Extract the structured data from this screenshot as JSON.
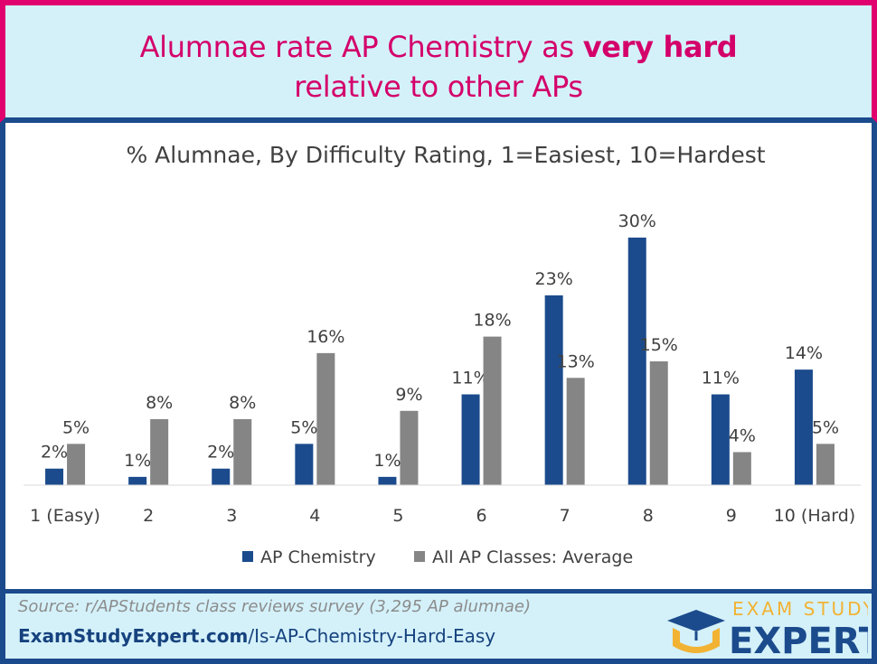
{
  "header": {
    "title_line1_pre": "Alumnae rate AP Chemistry as ",
    "title_line1_bold": "very hard",
    "title_line2": "relative to other APs"
  },
  "footer": {
    "source": "Source: r/APStudents class reviews survey (3,295 AP alumnae)",
    "url_bold": "ExamStudyExpert.com",
    "url_rest": "/Is-AP-Chemistry-Hard-Easy",
    "logo_top": "EXAM STUDY",
    "logo_bottom": "EXPERT"
  },
  "colors": {
    "title": "#d4006a",
    "header_bg": "#d4f1fa",
    "header_border": "#e0006e",
    "frame_border": "#1b4b8c",
    "series_chem": "#1b4b8c",
    "series_avg": "#858585",
    "logo_accent": "#f2b233"
  },
  "chart_data": {
    "type": "bar",
    "title": "% Alumnae, By Difficulty Rating, 1=Easiest, 10=Hardest",
    "categories": [
      "1 (Easy)",
      "2",
      "3",
      "4",
      "5",
      "6",
      "7",
      "8",
      "9",
      "10 (Hard)"
    ],
    "series": [
      {
        "name": "AP Chemistry",
        "values": [
          2,
          1,
          2,
          5,
          1,
          11,
          23,
          30,
          11,
          14
        ],
        "labels": [
          "2%",
          "1%",
          "2%",
          "5%",
          "1%",
          "11%",
          "23%",
          "30%",
          "11%",
          "14%"
        ]
      },
      {
        "name": "All AP Classes: Average",
        "values": [
          5,
          8,
          8,
          16,
          9,
          18,
          13,
          15,
          4,
          5
        ],
        "labels": [
          "5%",
          "8%",
          "8%",
          "16%",
          "9%",
          "18%",
          "13%",
          "15%",
          "4%",
          "5%"
        ]
      }
    ],
    "ylim": [
      0,
      30
    ],
    "grid": false,
    "legend": "bottom"
  }
}
